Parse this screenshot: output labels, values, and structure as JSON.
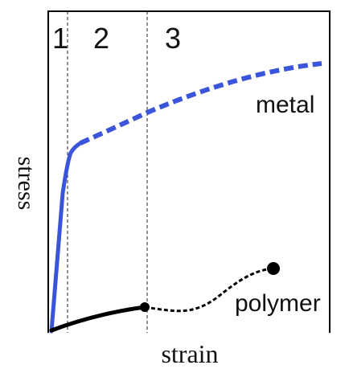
{
  "axes": {
    "xlabel": "strain",
    "ylabel": "stress"
  },
  "regions": [
    {
      "label": "1"
    },
    {
      "label": "2"
    },
    {
      "label": "3"
    }
  ],
  "curves": {
    "metal": {
      "label": "metal",
      "color": "#3a55d9"
    },
    "polymer": {
      "label": "polymer",
      "color": "#000000"
    }
  },
  "colors": {
    "frame": "#000000",
    "divider": "#222222",
    "text": "#111111"
  }
}
